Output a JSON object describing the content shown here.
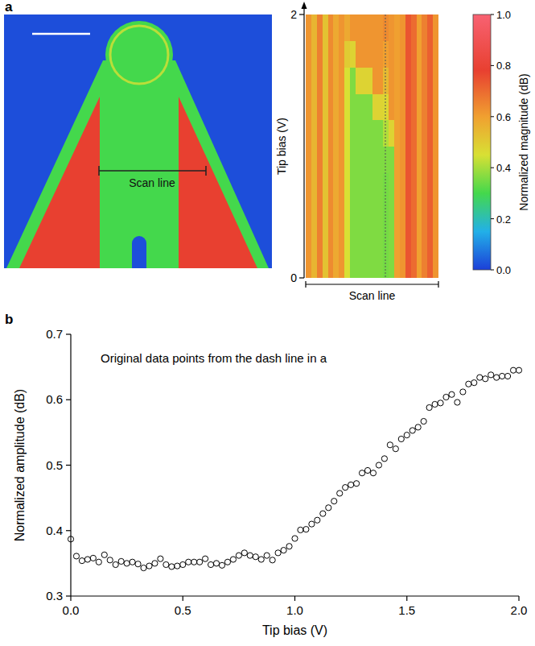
{
  "chart_data": [
    {
      "type": "image",
      "panel": "a",
      "annotation": "Scan line",
      "values": [
        0.02,
        0.3,
        0.78
      ]
    },
    {
      "type": "heatmap",
      "xlabel": "Scan line",
      "ylabel": "Tip bias (V)",
      "xlim": [
        0,
        1
      ],
      "ylim": [
        0,
        2
      ],
      "yticks": [
        0,
        2
      ],
      "tick_labels": "y",
      "dash_line_x": 0.6,
      "cells": [
        [
          0.62,
          0.55,
          0.66,
          0.52,
          0.64,
          0.58,
          0.62,
          0.45,
          0.36,
          0.36,
          0.36,
          0.36,
          0.36,
          0.36,
          0.35,
          0.36,
          0.6,
          0.62,
          0.74,
          0.7,
          0.6,
          0.66,
          0.72,
          0.62
        ],
        [
          0.62,
          0.55,
          0.66,
          0.52,
          0.64,
          0.58,
          0.62,
          0.45,
          0.36,
          0.36,
          0.36,
          0.36,
          0.36,
          0.36,
          0.35,
          0.36,
          0.6,
          0.62,
          0.74,
          0.7,
          0.6,
          0.66,
          0.72,
          0.62
        ],
        [
          0.62,
          0.55,
          0.66,
          0.52,
          0.64,
          0.58,
          0.62,
          0.45,
          0.36,
          0.36,
          0.36,
          0.36,
          0.36,
          0.36,
          0.35,
          0.36,
          0.6,
          0.62,
          0.74,
          0.7,
          0.6,
          0.66,
          0.72,
          0.62
        ],
        [
          0.62,
          0.55,
          0.66,
          0.52,
          0.64,
          0.58,
          0.62,
          0.45,
          0.36,
          0.36,
          0.36,
          0.36,
          0.36,
          0.36,
          0.35,
          0.36,
          0.6,
          0.62,
          0.74,
          0.7,
          0.6,
          0.66,
          0.72,
          0.62
        ],
        [
          0.62,
          0.55,
          0.66,
          0.52,
          0.64,
          0.58,
          0.62,
          0.45,
          0.36,
          0.36,
          0.36,
          0.36,
          0.36,
          0.36,
          0.36,
          0.36,
          0.6,
          0.62,
          0.74,
          0.7,
          0.6,
          0.66,
          0.72,
          0.62
        ],
        [
          0.62,
          0.55,
          0.66,
          0.52,
          0.64,
          0.58,
          0.62,
          0.45,
          0.36,
          0.36,
          0.36,
          0.36,
          0.36,
          0.36,
          0.41,
          0.48,
          0.6,
          0.62,
          0.74,
          0.7,
          0.6,
          0.66,
          0.72,
          0.62
        ],
        [
          0.62,
          0.55,
          0.66,
          0.52,
          0.64,
          0.58,
          0.62,
          0.45,
          0.36,
          0.36,
          0.36,
          0.36,
          0.48,
          0.48,
          0.47,
          0.62,
          0.6,
          0.62,
          0.74,
          0.7,
          0.6,
          0.66,
          0.72,
          0.62
        ],
        [
          0.62,
          0.55,
          0.66,
          0.52,
          0.64,
          0.58,
          0.62,
          0.45,
          0.36,
          0.48,
          0.48,
          0.48,
          0.62,
          0.62,
          0.54,
          0.62,
          0.6,
          0.62,
          0.74,
          0.7,
          0.6,
          0.66,
          0.72,
          0.62
        ],
        [
          0.62,
          0.55,
          0.66,
          0.52,
          0.64,
          0.58,
          0.62,
          0.5,
          0.48,
          0.62,
          0.62,
          0.62,
          0.62,
          0.62,
          0.6,
          0.62,
          0.6,
          0.62,
          0.74,
          0.7,
          0.6,
          0.66,
          0.72,
          0.62
        ],
        [
          0.62,
          0.55,
          0.66,
          0.52,
          0.64,
          0.58,
          0.62,
          0.58,
          0.62,
          0.62,
          0.62,
          0.62,
          0.62,
          0.62,
          0.64,
          0.62,
          0.6,
          0.62,
          0.74,
          0.7,
          0.6,
          0.66,
          0.72,
          0.62
        ]
      ],
      "colorbar": {
        "label": "Normalized magnitude (dB)",
        "range": [
          0,
          1
        ],
        "ticks": [
          {
            "value": 0,
            "label": "0.0"
          },
          {
            "value": 0.2,
            "label": "0.2"
          },
          {
            "value": 0.4,
            "label": "0.4"
          },
          {
            "value": 0.6,
            "label": "0.6"
          },
          {
            "value": 0.8,
            "label": "0.8"
          },
          {
            "value": 1,
            "label": "1.0"
          }
        ]
      }
    },
    {
      "type": "scatter",
      "panel": "b",
      "annotation": "Original data points from the dash line in a",
      "xlabel": "Tip bias (V)",
      "ylabel": "Normalized amplitude (dB)",
      "marker": "open-circle",
      "xlim": [
        0,
        2
      ],
      "ylim": [
        0.3,
        0.7
      ],
      "xticks": [
        {
          "value": 0,
          "label": "0.0"
        },
        {
          "value": 0.5,
          "label": "0.5"
        },
        {
          "value": 1,
          "label": "1.0"
        },
        {
          "value": 1.5,
          "label": "1.5"
        },
        {
          "value": 2,
          "label": "2.0"
        }
      ],
      "yticks": [
        0.3,
        0.4,
        0.5,
        0.6,
        0.7
      ],
      "x": [
        0,
        0.025,
        0.05,
        0.075,
        0.1,
        0.125,
        0.15,
        0.175,
        0.2,
        0.225,
        0.25,
        0.275,
        0.3,
        0.325,
        0.35,
        0.375,
        0.4,
        0.425,
        0.45,
        0.475,
        0.5,
        0.525,
        0.55,
        0.575,
        0.6,
        0.625,
        0.65,
        0.675,
        0.7,
        0.725,
        0.75,
        0.775,
        0.8,
        0.825,
        0.85,
        0.875,
        0.9,
        0.925,
        0.95,
        0.975,
        1,
        1.025,
        1.05,
        1.075,
        1.1,
        1.125,
        1.15,
        1.175,
        1.2,
        1.225,
        1.25,
        1.275,
        1.3,
        1.325,
        1.35,
        1.375,
        1.4,
        1.425,
        1.45,
        1.475,
        1.5,
        1.525,
        1.55,
        1.575,
        1.6,
        1.625,
        1.65,
        1.675,
        1.7,
        1.725,
        1.75,
        1.775,
        1.8,
        1.825,
        1.85,
        1.875,
        1.9,
        1.925,
        1.95,
        1.975,
        2
      ],
      "values": [
        0.387,
        0.361,
        0.354,
        0.356,
        0.358,
        0.352,
        0.363,
        0.355,
        0.348,
        0.353,
        0.35,
        0.352,
        0.349,
        0.343,
        0.346,
        0.35,
        0.357,
        0.348,
        0.345,
        0.346,
        0.348,
        0.352,
        0.352,
        0.352,
        0.357,
        0.348,
        0.35,
        0.347,
        0.352,
        0.356,
        0.362,
        0.366,
        0.362,
        0.36,
        0.356,
        0.362,
        0.355,
        0.366,
        0.37,
        0.376,
        0.388,
        0.401,
        0.402,
        0.41,
        0.416,
        0.426,
        0.435,
        0.445,
        0.457,
        0.466,
        0.47,
        0.472,
        0.488,
        0.492,
        0.488,
        0.5,
        0.51,
        0.531,
        0.525,
        0.54,
        0.546,
        0.553,
        0.558,
        0.567,
        0.588,
        0.593,
        0.595,
        0.604,
        0.608,
        0.596,
        0.612,
        0.624,
        0.626,
        0.634,
        0.632,
        0.638,
        0.634,
        0.636,
        0.636,
        0.645,
        0.645
      ]
    }
  ]
}
